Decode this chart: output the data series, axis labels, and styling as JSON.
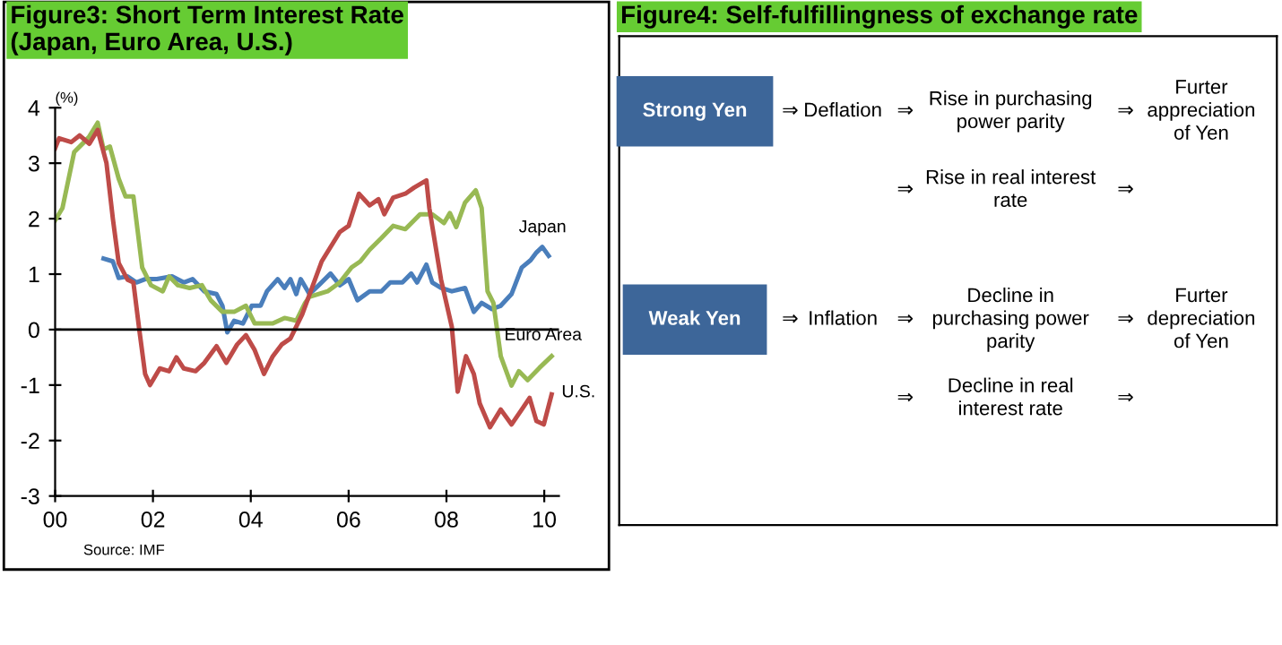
{
  "chart_data": [
    {
      "type": "line",
      "title": "Figure3: Short Term Interest Rate\n(Japan, Euro Area, U.S.)",
      "ylabel": "(%)",
      "annotations": [
        "Source: IMF"
      ],
      "xlim": [
        0,
        10.3
      ],
      "xticks": [
        {
          "value": 0,
          "label": "00"
        },
        {
          "value": 2,
          "label": "02"
        },
        {
          "value": 4,
          "label": "04"
        },
        {
          "value": 6,
          "label": "06"
        },
        {
          "value": 8,
          "label": "08"
        },
        {
          "value": 10,
          "label": "10"
        }
      ],
      "ylim": [
        -3,
        4
      ],
      "yticks": [
        -3,
        -2,
        -1,
        0,
        1,
        2,
        3,
        4
      ],
      "grid": false,
      "legend": false,
      "ref_lines": [
        {
          "axis": "y",
          "value": 0,
          "color": "#000000"
        }
      ],
      "series": [
        {
          "name": "Japan",
          "color": "#4a7ebb",
          "x": [
            0.99,
            1.18,
            1.3,
            1.48,
            1.66,
            1.84,
            2.08,
            2.39,
            2.63,
            2.81,
            3.05,
            3.3,
            3.42,
            3.52,
            3.66,
            3.84,
            4.02,
            4.2,
            4.33,
            4.55,
            4.69,
            4.81,
            4.93,
            5.02,
            5.2,
            5.39,
            5.63,
            5.82,
            6.0,
            6.18,
            6.43,
            6.67,
            6.85,
            7.1,
            7.28,
            7.4,
            7.59,
            7.71,
            7.89,
            8.11,
            8.38,
            8.56,
            8.72,
            8.93,
            9.11,
            9.33,
            9.54,
            9.72,
            9.84,
            9.96,
            10.09
          ],
          "values": [
            1.28,
            1.23,
            0.93,
            0.96,
            0.85,
            0.91,
            0.91,
            0.96,
            0.85,
            0.91,
            0.69,
            0.64,
            0.43,
            -0.05,
            0.16,
            0.11,
            0.43,
            0.43,
            0.69,
            0.91,
            0.75,
            0.91,
            0.64,
            0.91,
            0.64,
            0.8,
            1.01,
            0.8,
            0.91,
            0.53,
            0.69,
            0.69,
            0.85,
            0.85,
            1.01,
            0.85,
            1.17,
            0.85,
            0.75,
            0.69,
            0.75,
            0.32,
            0.48,
            0.37,
            0.43,
            0.64,
            1.12,
            1.25,
            1.39,
            1.49,
            1.33
          ]
        },
        {
          "name": "Euro Area",
          "color": "#98b954",
          "x": [
            0,
            0.15,
            0.39,
            0.57,
            0.69,
            0.87,
            0.99,
            1.12,
            1.3,
            1.44,
            1.6,
            1.78,
            1.96,
            2.2,
            2.33,
            2.51,
            2.75,
            3.0,
            3.18,
            3.42,
            3.66,
            3.9,
            4.08,
            4.45,
            4.69,
            4.93,
            5.11,
            5.2,
            5.57,
            5.82,
            6.06,
            6.24,
            6.43,
            6.67,
            6.91,
            7.16,
            7.46,
            7.71,
            7.95,
            8.07,
            8.2,
            8.38,
            8.6,
            8.72,
            8.84,
            8.96,
            9.11,
            9.33,
            9.48,
            9.66,
            9.9,
            10.15
          ],
          "values": [
            1.97,
            2.19,
            3.2,
            3.36,
            3.47,
            3.73,
            3.25,
            3.3,
            2.72,
            2.4,
            2.4,
            1.12,
            0.8,
            0.69,
            0.96,
            0.8,
            0.75,
            0.8,
            0.53,
            0.32,
            0.32,
            0.43,
            0.11,
            0.11,
            0.21,
            0.16,
            0.48,
            0.59,
            0.69,
            0.85,
            1.12,
            1.23,
            1.44,
            1.65,
            1.87,
            1.81,
            2.08,
            2.08,
            1.92,
            2.1,
            1.85,
            2.29,
            2.51,
            2.19,
            0.69,
            0.48,
            -0.48,
            -1.01,
            -0.75,
            -0.91,
            -0.69,
            -0.48
          ]
        },
        {
          "name": "U.S.",
          "color": "#be4b48",
          "x": [
            0,
            0.08,
            0.33,
            0.5,
            0.7,
            0.87,
            1.05,
            1.18,
            1.3,
            1.48,
            1.6,
            1.72,
            1.84,
            1.94,
            2.14,
            2.33,
            2.48,
            2.63,
            2.87,
            3.05,
            3.3,
            3.5,
            3.72,
            3.9,
            4.08,
            4.27,
            4.45,
            4.63,
            4.81,
            5.05,
            5.45,
            5.82,
            6.0,
            6.21,
            6.43,
            6.61,
            6.73,
            6.91,
            7.16,
            7.34,
            7.59,
            7.65,
            7.89,
            8.11,
            8.23,
            8.4,
            8.56,
            8.68,
            8.89,
            9.11,
            9.33,
            9.54,
            9.7,
            9.84,
            9.99,
            10.15
          ],
          "values": [
            3.27,
            3.45,
            3.38,
            3.5,
            3.35,
            3.6,
            3.0,
            2.0,
            1.2,
            0.9,
            0.85,
            0,
            -0.8,
            -1.0,
            -0.7,
            -0.75,
            -0.5,
            -0.7,
            -0.75,
            -0.6,
            -0.3,
            -0.6,
            -0.27,
            -0.1,
            -0.37,
            -0.8,
            -0.48,
            -0.27,
            -0.16,
            0.27,
            1.23,
            1.76,
            1.87,
            2.45,
            2.24,
            2.35,
            2.08,
            2.38,
            2.45,
            2.56,
            2.69,
            2.19,
            0.9,
            0.05,
            -1.12,
            -0.48,
            -0.8,
            -1.33,
            -1.76,
            -1.44,
            -1.71,
            -1.44,
            -1.23,
            -1.65,
            -1.71,
            -1.17
          ]
        }
      ]
    },
    {
      "type": "other",
      "title": "Figure4: Self-fulfillingness of exchange rate",
      "annotations": [
        "Strong Yen",
        "⇒",
        "Deflation",
        "⇒",
        "Rise in purchasing\npower parity",
        "⇒",
        "Furter\nappreciation\nof Yen",
        "⇒",
        "Rise in real interest\nrate",
        "⇒",
        "Weak Yen",
        "⇒",
        "Inflation",
        "⇒",
        "Decline in\npurchasing power\nparity",
        "⇒",
        "Furter\ndepreciation\nof Yen",
        "⇒",
        "Decline in real\ninterest rate",
        "⇒"
      ]
    }
  ]
}
